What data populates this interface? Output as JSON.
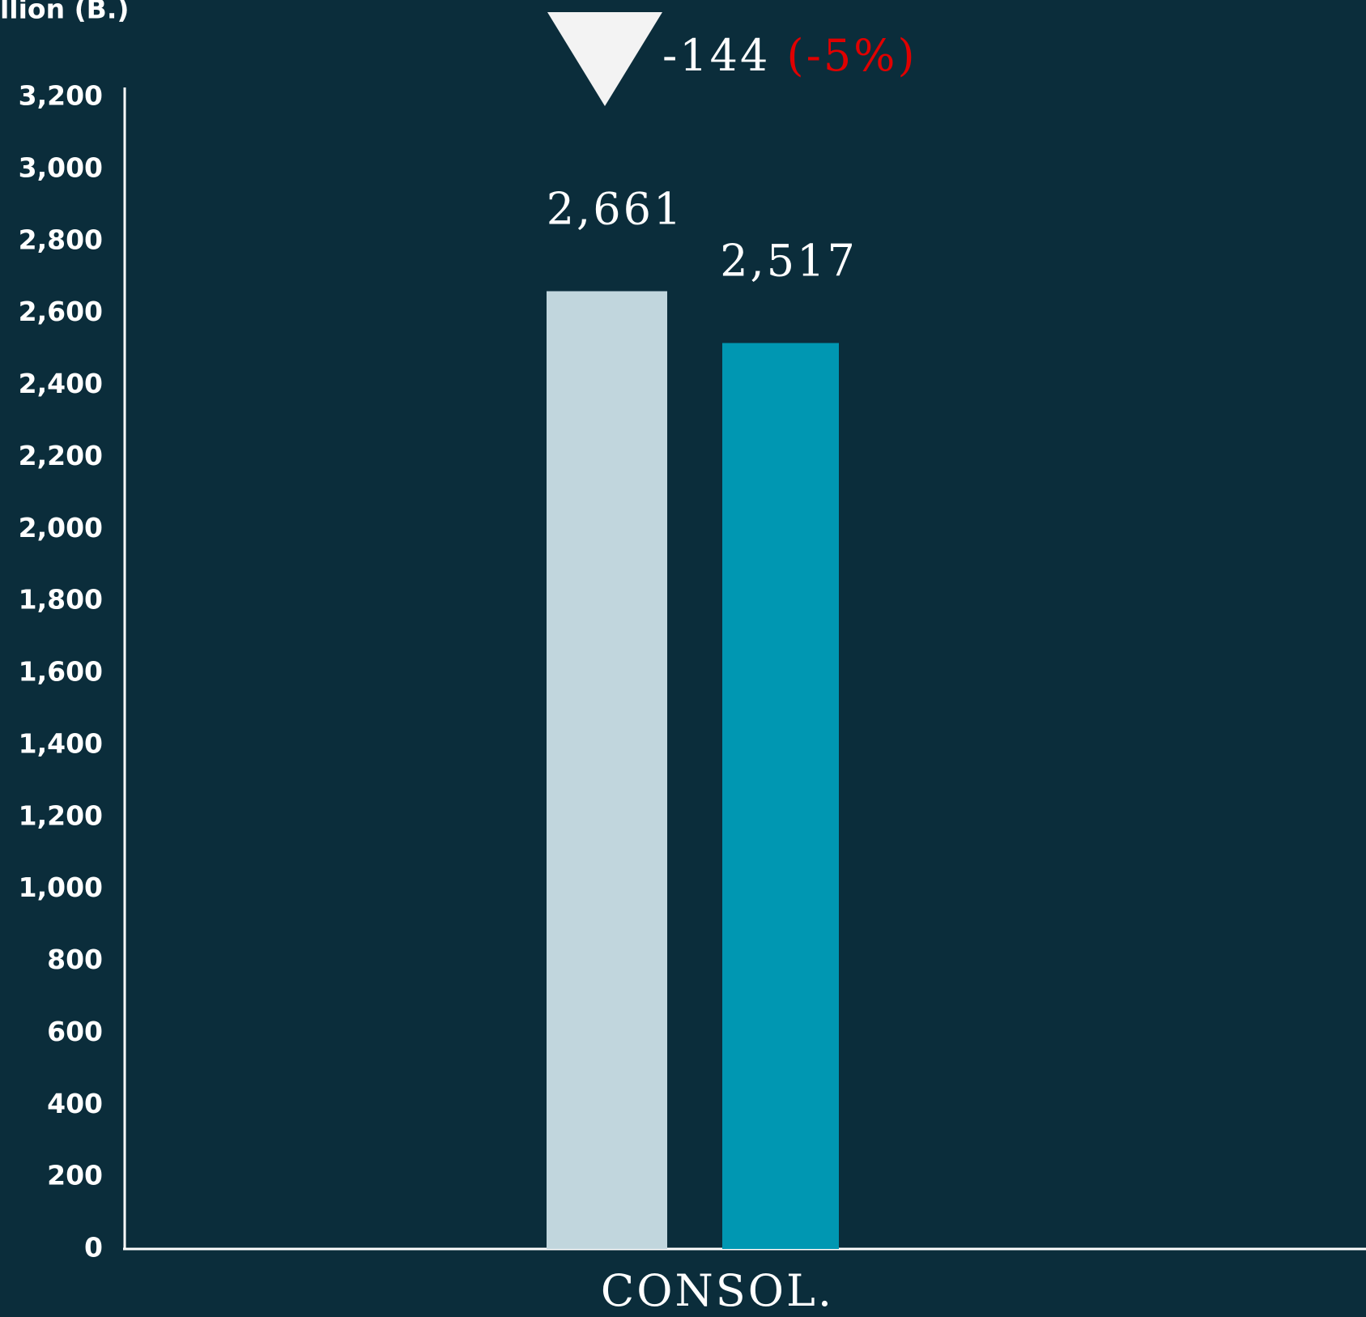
{
  "chart_data": {
    "type": "bar",
    "y_axis_label": "llion (B.)",
    "categories": [
      "CONSOL."
    ],
    "series": [
      {
        "color": "#c1d6dd",
        "values": [
          2661
        ],
        "value_labels": [
          "2,661"
        ]
      },
      {
        "color": "#0097b2",
        "values": [
          2517
        ],
        "value_labels": [
          "2,517"
        ]
      }
    ],
    "annotations": {
      "change": "-144",
      "percent": "(-5%)",
      "percent_color": "#e00000"
    },
    "ylim": [
      0,
      3200
    ],
    "yticks": [
      0,
      200,
      400,
      600,
      800,
      {
        "value": 1000,
        "label": "1,000"
      },
      {
        "value": 1200,
        "label": "1,200"
      },
      {
        "value": 1400,
        "label": "1,400"
      },
      {
        "value": 1600,
        "label": "1,600"
      },
      {
        "value": 1800,
        "label": "1,800"
      },
      {
        "value": 2000,
        "label": "2,000"
      },
      {
        "value": 2200,
        "label": "2,200"
      },
      {
        "value": 2400,
        "label": "2,400"
      },
      {
        "value": 2600,
        "label": "2,600"
      },
      {
        "value": 2800,
        "label": "2,800"
      },
      {
        "value": 3000,
        "label": "3,000"
      },
      {
        "value": 3200,
        "label": "3,200"
      }
    ],
    "grid": false
  }
}
